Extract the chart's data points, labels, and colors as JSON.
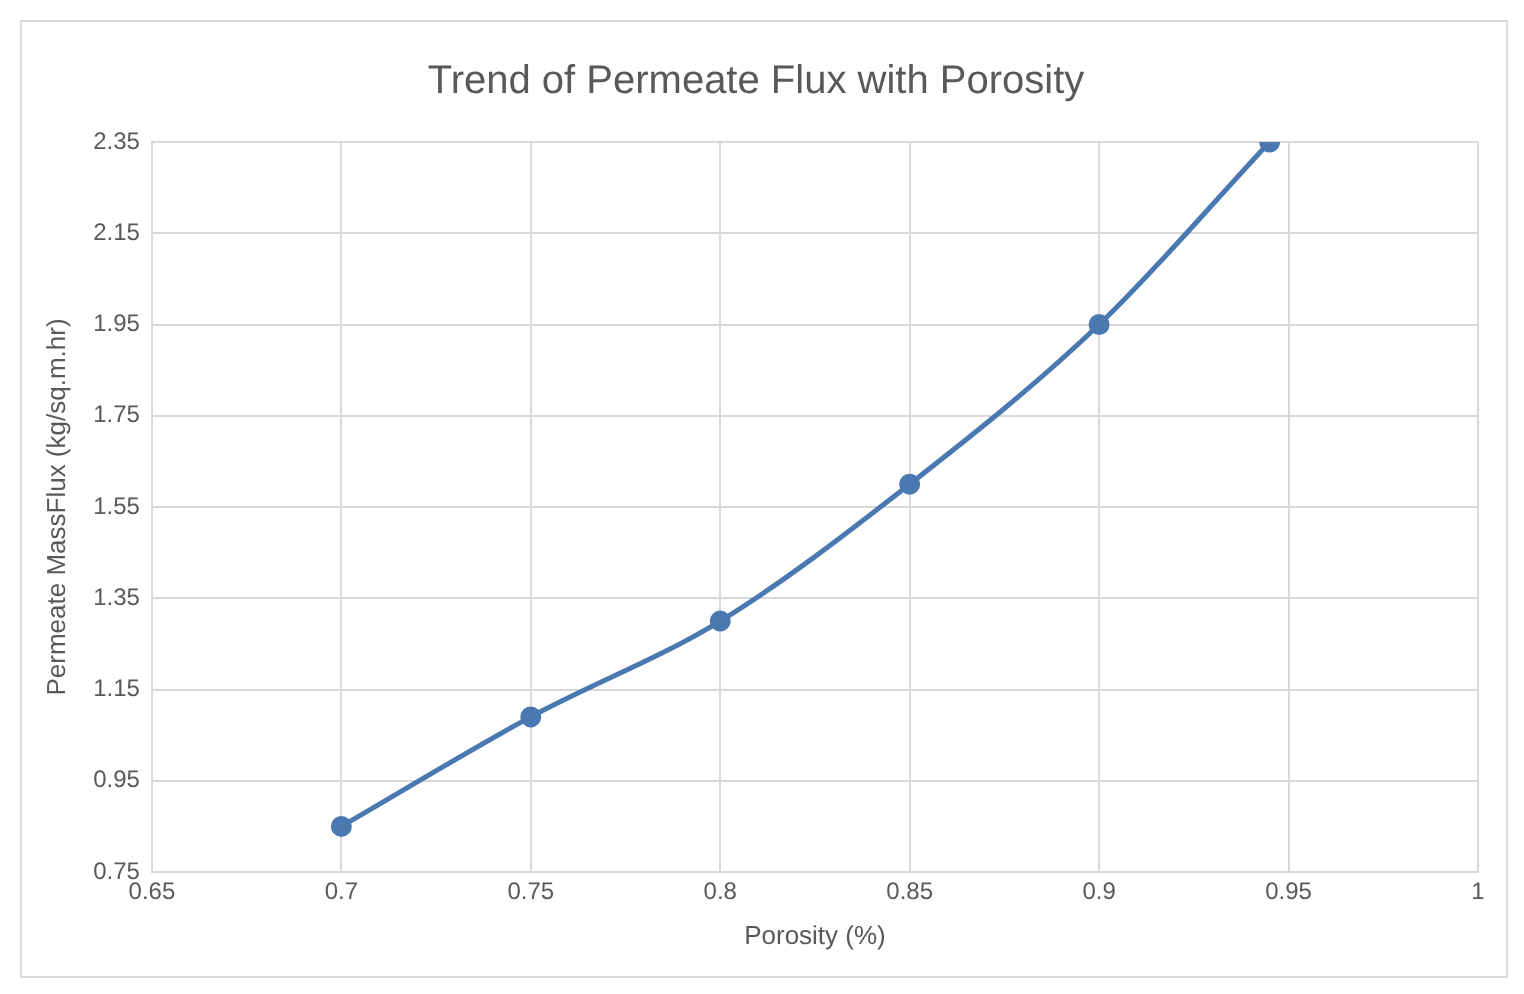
{
  "chart_data": {
    "type": "line",
    "title": "Trend of Permeate Flux with Porosity",
    "xlabel": "Porosity (%)",
    "ylabel": "Permeate MassFlux (kg/sq.m.hr)",
    "series": [
      {
        "color": "#4a78b0",
        "x": [
          0.7,
          0.75,
          0.8,
          0.85,
          0.9,
          0.945
        ],
        "values": [
          0.85,
          1.09,
          1.3,
          1.6,
          1.95,
          2.35
        ]
      }
    ],
    "xlim": [
      0.65,
      1
    ],
    "xticks": [
      0.65,
      0.7,
      0.75,
      0.8,
      0.85,
      0.9,
      0.95,
      1
    ],
    "ylim": [
      0.75,
      2.35
    ],
    "yticks": [
      0.75,
      0.95,
      1.15,
      1.35,
      1.55,
      1.75,
      1.95,
      2.15,
      2.35
    ],
    "grid": true,
    "legend": false,
    "marker": "circle",
    "line_style": "solid"
  }
}
